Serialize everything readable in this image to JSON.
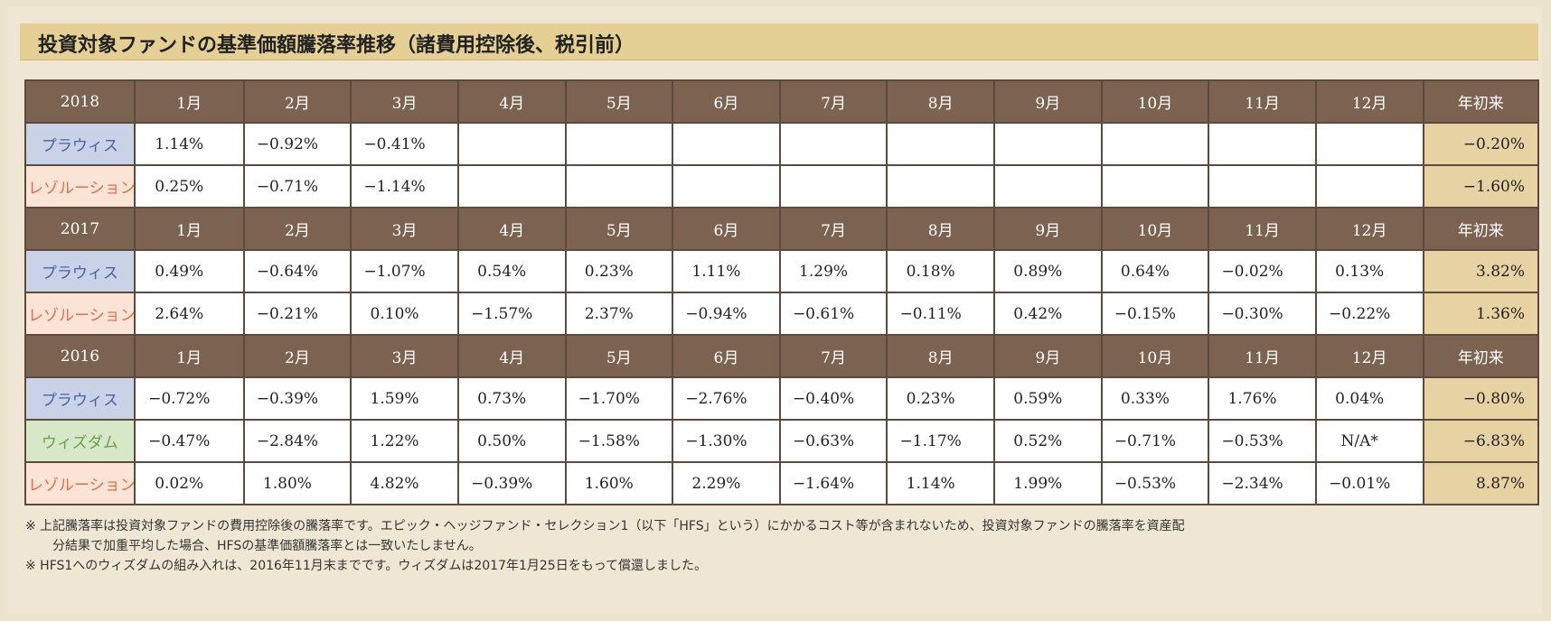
{
  "title": "投資対象ファンドの基準価額騰落率推移（諸費用控除後、税引前）",
  "months": [
    "1月",
    "2月",
    "3月",
    "4月",
    "5月",
    "6月",
    "7月",
    "8月",
    "9月",
    "10月",
    "11月",
    "12月"
  ],
  "ytd_label": "年初来",
  "fund_names": {
    "pravis": "プラウィス",
    "resolution": "レゾルーション",
    "wisdom": "ウィズダム"
  },
  "years": [
    {
      "year": "2018",
      "rows": [
        {
          "fund": "プラウィス",
          "values": [
            "1.14%",
            "−0.92%",
            "−0.41%",
            "",
            "",
            "",
            "",
            "",
            "",
            "",
            "",
            ""
          ],
          "ytd": "−0.20%"
        },
        {
          "fund": "レゾルーション",
          "values": [
            "0.25%",
            "−0.71%",
            "−1.14%",
            "",
            "",
            "",
            "",
            "",
            "",
            "",
            "",
            ""
          ],
          "ytd": "−1.60%"
        }
      ]
    },
    {
      "year": "2017",
      "rows": [
        {
          "fund": "プラウィス",
          "values": [
            "0.49%",
            "−0.64%",
            "−1.07%",
            "0.54%",
            "0.23%",
            "1.11%",
            "1.29%",
            "0.18%",
            "0.89%",
            "0.64%",
            "−0.02%",
            "0.13%"
          ],
          "ytd": "3.82%"
        },
        {
          "fund": "レゾルーション",
          "values": [
            "2.64%",
            "−0.21%",
            "0.10%",
            "−1.57%",
            "2.37%",
            "−0.94%",
            "−0.61%",
            "−0.11%",
            "0.42%",
            "−0.15%",
            "−0.30%",
            "−0.22%"
          ],
          "ytd": "1.36%"
        }
      ]
    },
    {
      "year": "2016",
      "rows": [
        {
          "fund": "プラウィス",
          "values": [
            "−0.72%",
            "−0.39%",
            "1.59%",
            "0.73%",
            "−1.70%",
            "−2.76%",
            "−0.40%",
            "0.23%",
            "0.59%",
            "0.33%",
            "1.76%",
            "0.04%"
          ],
          "ytd": "−0.80%"
        },
        {
          "fund": "ウィズダム",
          "values": [
            "−0.47%",
            "−2.84%",
            "1.22%",
            "0.50%",
            "−1.58%",
            "−1.30%",
            "−0.63%",
            "−1.17%",
            "0.52%",
            "−0.71%",
            "−0.53%",
            "N/A*"
          ],
          "ytd": "−6.83%"
        },
        {
          "fund": "レゾルーション",
          "values": [
            "0.02%",
            "1.80%",
            "4.82%",
            "−0.39%",
            "1.60%",
            "2.29%",
            "−1.64%",
            "1.14%",
            "1.99%",
            "−0.53%",
            "−2.34%",
            "−0.01%"
          ],
          "ytd": "8.87%"
        }
      ]
    }
  ],
  "notes": {
    "line1": "※ 上記騰落率は投資対象ファンドの費用控除後の騰落率です。エピック・ヘッジファンド・セレクション1（以下「HFS」という）にかかるコスト等が含まれないため、投資対象ファンドの騰落率を資産配",
    "line2": "分結果で加重平均した場合、HFSの基準価額騰落率とは一致いたしません。",
    "line3": "※ HFS1へのウィズダムの組み入れは、2016年11月末までです。ウィズダムは2017年1月25日をもって償還しました。"
  },
  "colors": {
    "header_bg": "#7b6251",
    "ytd_bg": "#e6d2a3",
    "title_bg": "#e4cf95",
    "pravis_bg": "#c9d2e6",
    "pravis_text": "#4a62a8",
    "resolution_bg": "#fbe3d6",
    "resolution_text": "#e0704a",
    "wisdom_bg": "#d6e8c8",
    "wisdom_text": "#6d9f4b"
  }
}
